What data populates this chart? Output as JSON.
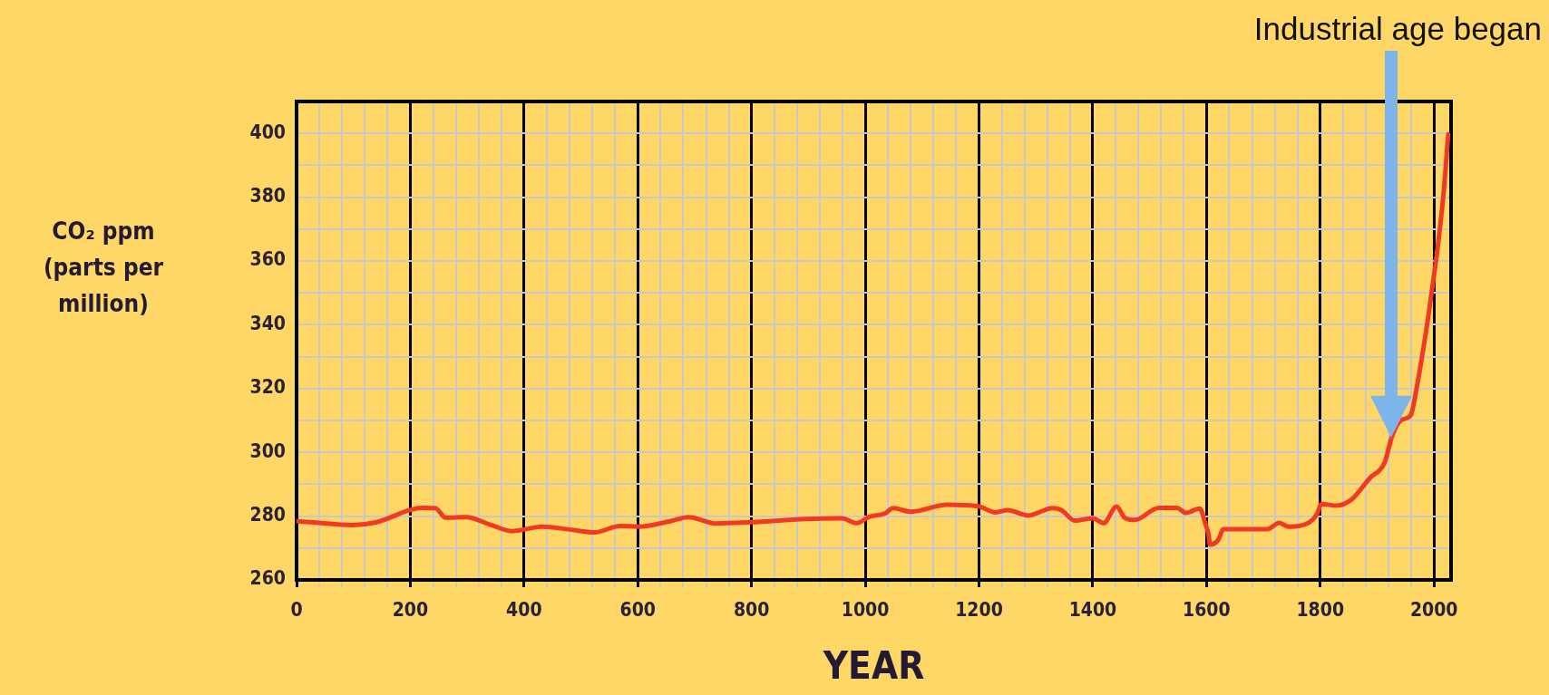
{
  "chart_data": {
    "type": "line",
    "xlabel": "YEAR",
    "ylabel": "CO₂ ppm (parts per million)",
    "annotations": [
      "Industrial age began"
    ],
    "x": [
      0,
      24,
      98,
      141,
      199,
      220,
      244,
      262,
      299,
      342,
      379,
      432,
      480,
      524,
      569,
      601,
      657,
      689,
      737,
      800,
      895,
      959,
      985,
      1006,
      1035,
      1049,
      1080,
      1144,
      1199,
      1229,
      1250,
      1287,
      1329,
      1345,
      1368,
      1400,
      1419,
      1442,
      1456,
      1474,
      1516,
      1548,
      1564,
      1588,
      1598,
      1604,
      1606,
      1620,
      1630,
      1670,
      1707,
      1728,
      1744,
      1781,
      1794,
      1802,
      1829,
      1855,
      1887,
      1913,
      1927,
      1943,
      1959,
      1969,
      1980,
      1990,
      1998,
      2006,
      2017,
      2025
    ],
    "series": [
      {
        "color": "#f03a24",
        "values": [
          278.4,
          278.1,
          277.2,
          278.1,
          281.9,
          282.6,
          282.5,
          279.5,
          279.7,
          277.2,
          275.3,
          276.7,
          275.8,
          274.9,
          276.9,
          276.7,
          278.4,
          279.7,
          277.7,
          278.1,
          279.1,
          279.3,
          277.8,
          279.7,
          280.9,
          282.5,
          281.4,
          283.6,
          283.1,
          281.2,
          281.9,
          280.2,
          282.5,
          281.9,
          278.6,
          279.3,
          277.8,
          283,
          279.5,
          278.8,
          282.6,
          282.6,
          281,
          282.4,
          277.6,
          273.8,
          271.1,
          272.4,
          275.9,
          275.9,
          275.9,
          277.9,
          276.7,
          278.1,
          280.5,
          283.8,
          283.3,
          285.2,
          291.9,
          296.7,
          305.4,
          310.2,
          311.6,
          319.7,
          331.1,
          342.6,
          353,
          363.5,
          381.6,
          399.7
        ]
      }
    ],
    "xlim": [
      0,
      2030
    ],
    "ylim": [
      260,
      410
    ],
    "xticks": [
      0,
      {
        "value": 40,
        "label": null
      },
      {
        "value": 80,
        "label": null
      },
      {
        "value": 120,
        "label": null
      },
      {
        "value": 160,
        "label": null
      },
      200,
      {
        "value": 240,
        "label": null
      },
      {
        "value": 280,
        "label": null
      },
      {
        "value": 320,
        "label": null
      },
      {
        "value": 360,
        "label": null
      },
      400,
      {
        "value": 440,
        "label": null
      },
      {
        "value": 480,
        "label": null
      },
      {
        "value": 520,
        "label": null
      },
      {
        "value": 560,
        "label": null
      },
      600,
      {
        "value": 640,
        "label": null
      },
      {
        "value": 680,
        "label": null
      },
      {
        "value": 720,
        "label": null
      },
      {
        "value": 760,
        "label": null
      },
      800,
      {
        "value": 840,
        "label": null
      },
      {
        "value": 880,
        "label": null
      },
      {
        "value": 920,
        "label": null
      },
      {
        "value": 960,
        "label": null
      },
      1000,
      {
        "value": 1040,
        "label": null
      },
      {
        "value": 1080,
        "label": null
      },
      {
        "value": 1120,
        "label": null
      },
      {
        "value": 1160,
        "label": null
      },
      1200,
      {
        "value": 1240,
        "label": null
      },
      {
        "value": 1280,
        "label": null
      },
      {
        "value": 1320,
        "label": null
      },
      {
        "value": 1360,
        "label": null
      },
      1400,
      {
        "value": 1440,
        "label": null
      },
      {
        "value": 1480,
        "label": null
      },
      {
        "value": 1520,
        "label": null
      },
      {
        "value": 1560,
        "label": null
      },
      1600,
      {
        "value": 1640,
        "label": null
      },
      {
        "value": 1680,
        "label": null
      },
      {
        "value": 1720,
        "label": null
      },
      {
        "value": 1760,
        "label": null
      },
      1800,
      {
        "value": 1840,
        "label": null
      },
      {
        "value": 1880,
        "label": null
      },
      {
        "value": 1920,
        "label": null
      },
      {
        "value": 1960,
        "label": null
      },
      2000
    ],
    "yticks": [
      260,
      {
        "value": 270,
        "label": null
      },
      280,
      {
        "value": 290,
        "label": null
      },
      300,
      {
        "value": 310,
        "label": null
      },
      320,
      {
        "value": 330,
        "label": null
      },
      340,
      {
        "value": 350,
        "label": null
      },
      360,
      {
        "value": 370,
        "label": null
      },
      380,
      {
        "value": 390,
        "label": null
      },
      400
    ],
    "grid": true
  }
}
